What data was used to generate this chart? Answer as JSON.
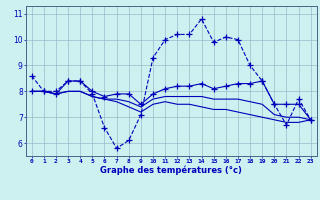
{
  "title": "",
  "xlabel": "Graphe des températures (°c)",
  "ylabel": "",
  "background_color": "#cdf0f0",
  "plot_bg_color": "#cdf0f0",
  "grid_color": "#99bbcc",
  "line_color": "#0000bb",
  "xlim": [
    -0.5,
    23.5
  ],
  "ylim": [
    5.5,
    11.3
  ],
  "xticks": [
    0,
    1,
    2,
    3,
    4,
    5,
    6,
    7,
    8,
    9,
    10,
    11,
    12,
    13,
    14,
    15,
    16,
    17,
    18,
    19,
    20,
    21,
    22,
    23
  ],
  "yticks": [
    6,
    7,
    8,
    9,
    10,
    11
  ],
  "series": [
    {
      "y": [
        8.6,
        8.0,
        8.0,
        8.4,
        8.4,
        7.9,
        6.6,
        5.8,
        6.1,
        7.1,
        9.3,
        10.0,
        10.2,
        10.2,
        10.8,
        9.9,
        10.1,
        10.0,
        9.0,
        8.4,
        7.5,
        6.7,
        7.7,
        6.9
      ],
      "linestyle": "--",
      "marker": true
    },
    {
      "y": [
        8.0,
        8.0,
        7.9,
        8.4,
        8.4,
        8.0,
        7.8,
        7.9,
        7.9,
        7.5,
        7.9,
        8.1,
        8.2,
        8.2,
        8.3,
        8.1,
        8.2,
        8.3,
        8.3,
        8.4,
        7.5,
        7.5,
        7.5,
        6.9
      ],
      "linestyle": "-",
      "marker": true
    },
    {
      "y": [
        8.0,
        8.0,
        7.9,
        8.0,
        8.0,
        7.8,
        7.7,
        7.7,
        7.6,
        7.4,
        7.7,
        7.8,
        7.8,
        7.8,
        7.8,
        7.7,
        7.7,
        7.7,
        7.6,
        7.5,
        7.1,
        7.0,
        7.0,
        6.9
      ],
      "linestyle": "-",
      "marker": false
    },
    {
      "y": [
        8.0,
        8.0,
        7.9,
        8.0,
        8.0,
        7.8,
        7.7,
        7.6,
        7.4,
        7.2,
        7.5,
        7.6,
        7.5,
        7.5,
        7.4,
        7.3,
        7.3,
        7.2,
        7.1,
        7.0,
        6.9,
        6.8,
        6.8,
        6.9
      ],
      "linestyle": "-",
      "marker": false
    }
  ]
}
